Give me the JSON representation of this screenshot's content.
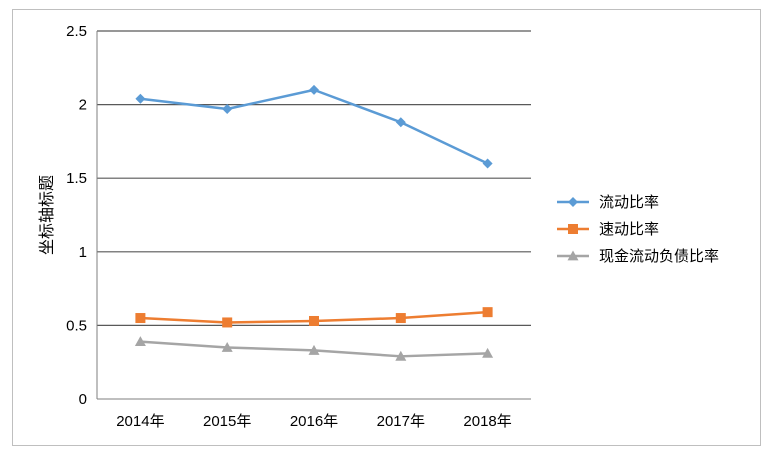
{
  "chart_data": {
    "type": "line",
    "title": "",
    "xlabel": "",
    "ylabel": "坐标轴标题",
    "categories": [
      "2014年",
      "2015年",
      "2016年",
      "2017年",
      "2018年"
    ],
    "ylim": [
      0,
      2.5
    ],
    "yticks": [
      "0",
      "0.5",
      "1",
      "1.5",
      "2",
      "2.5"
    ],
    "grid": true,
    "legend_position": "right",
    "series": [
      {
        "name": "流动比率",
        "values": [
          2.04,
          1.97,
          2.1,
          1.88,
          1.6
        ],
        "color": "#5B9BD5",
        "marker": "diamond"
      },
      {
        "name": "速动比率",
        "values": [
          0.55,
          0.52,
          0.53,
          0.55,
          0.59
        ],
        "color": "#ED7D31",
        "marker": "square"
      },
      {
        "name": "现金流动负债比率",
        "values": [
          0.39,
          0.35,
          0.33,
          0.29,
          0.31
        ],
        "color": "#A5A5A5",
        "marker": "triangle"
      }
    ]
  }
}
